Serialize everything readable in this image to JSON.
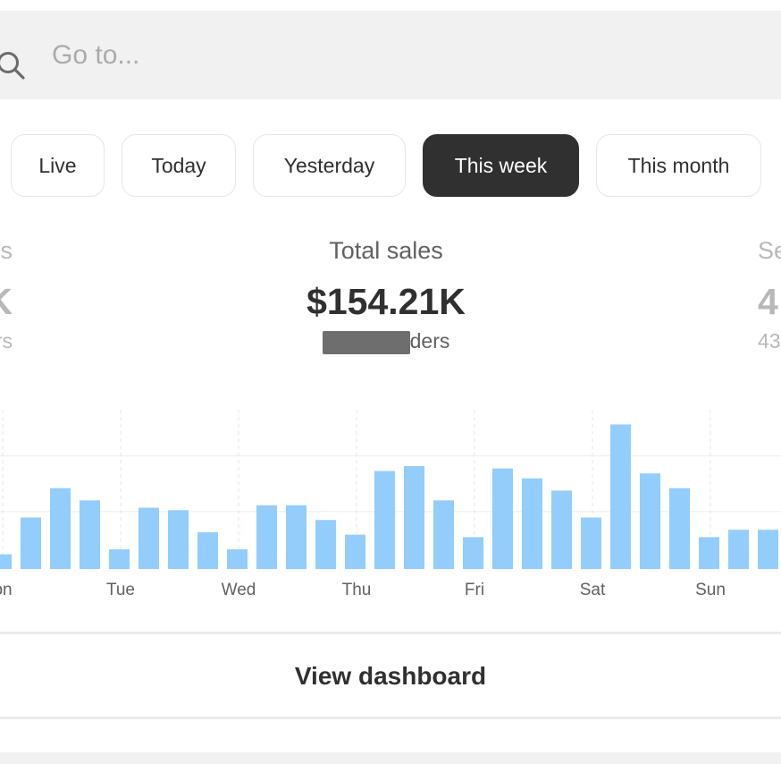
{
  "search": {
    "placeholder": "Go to...",
    "value": ""
  },
  "range_tabs": [
    {
      "label": "Live",
      "selected": false
    },
    {
      "label": "Today",
      "selected": false
    },
    {
      "label": "Yesterday",
      "selected": false
    },
    {
      "label": "This week",
      "selected": true
    },
    {
      "label": "This month",
      "selected": false
    }
  ],
  "metrics": {
    "left": {
      "label": "s",
      "value": "K",
      "sub": "rs"
    },
    "center": {
      "label": "Total sales",
      "value": "$154.21K",
      "sub": "ders"
    },
    "right": {
      "label": "Se",
      "value": "4",
      "sub": "43"
    }
  },
  "chart_data": {
    "type": "bar",
    "x_labels": [
      "on",
      "Tue",
      "Wed",
      "Thu",
      "Fri",
      "Sat",
      "Sun"
    ],
    "values": [
      6,
      21,
      33,
      28,
      8,
      25,
      24,
      15,
      8,
      26,
      26,
      20,
      14,
      40,
      42,
      28,
      13,
      41,
      37,
      32,
      21,
      59,
      39,
      33,
      13,
      16,
      16
    ],
    "ylim": [
      0,
      65
    ],
    "grid": true,
    "bar_color": "#93cdfb"
  },
  "footer": {
    "view_dashboard_label": "View dashboard"
  },
  "colors": {
    "accent_dark": "#303030",
    "bar": "#93cdfb",
    "muted_text": "#616161",
    "faded_text": "#b8b8b8"
  }
}
